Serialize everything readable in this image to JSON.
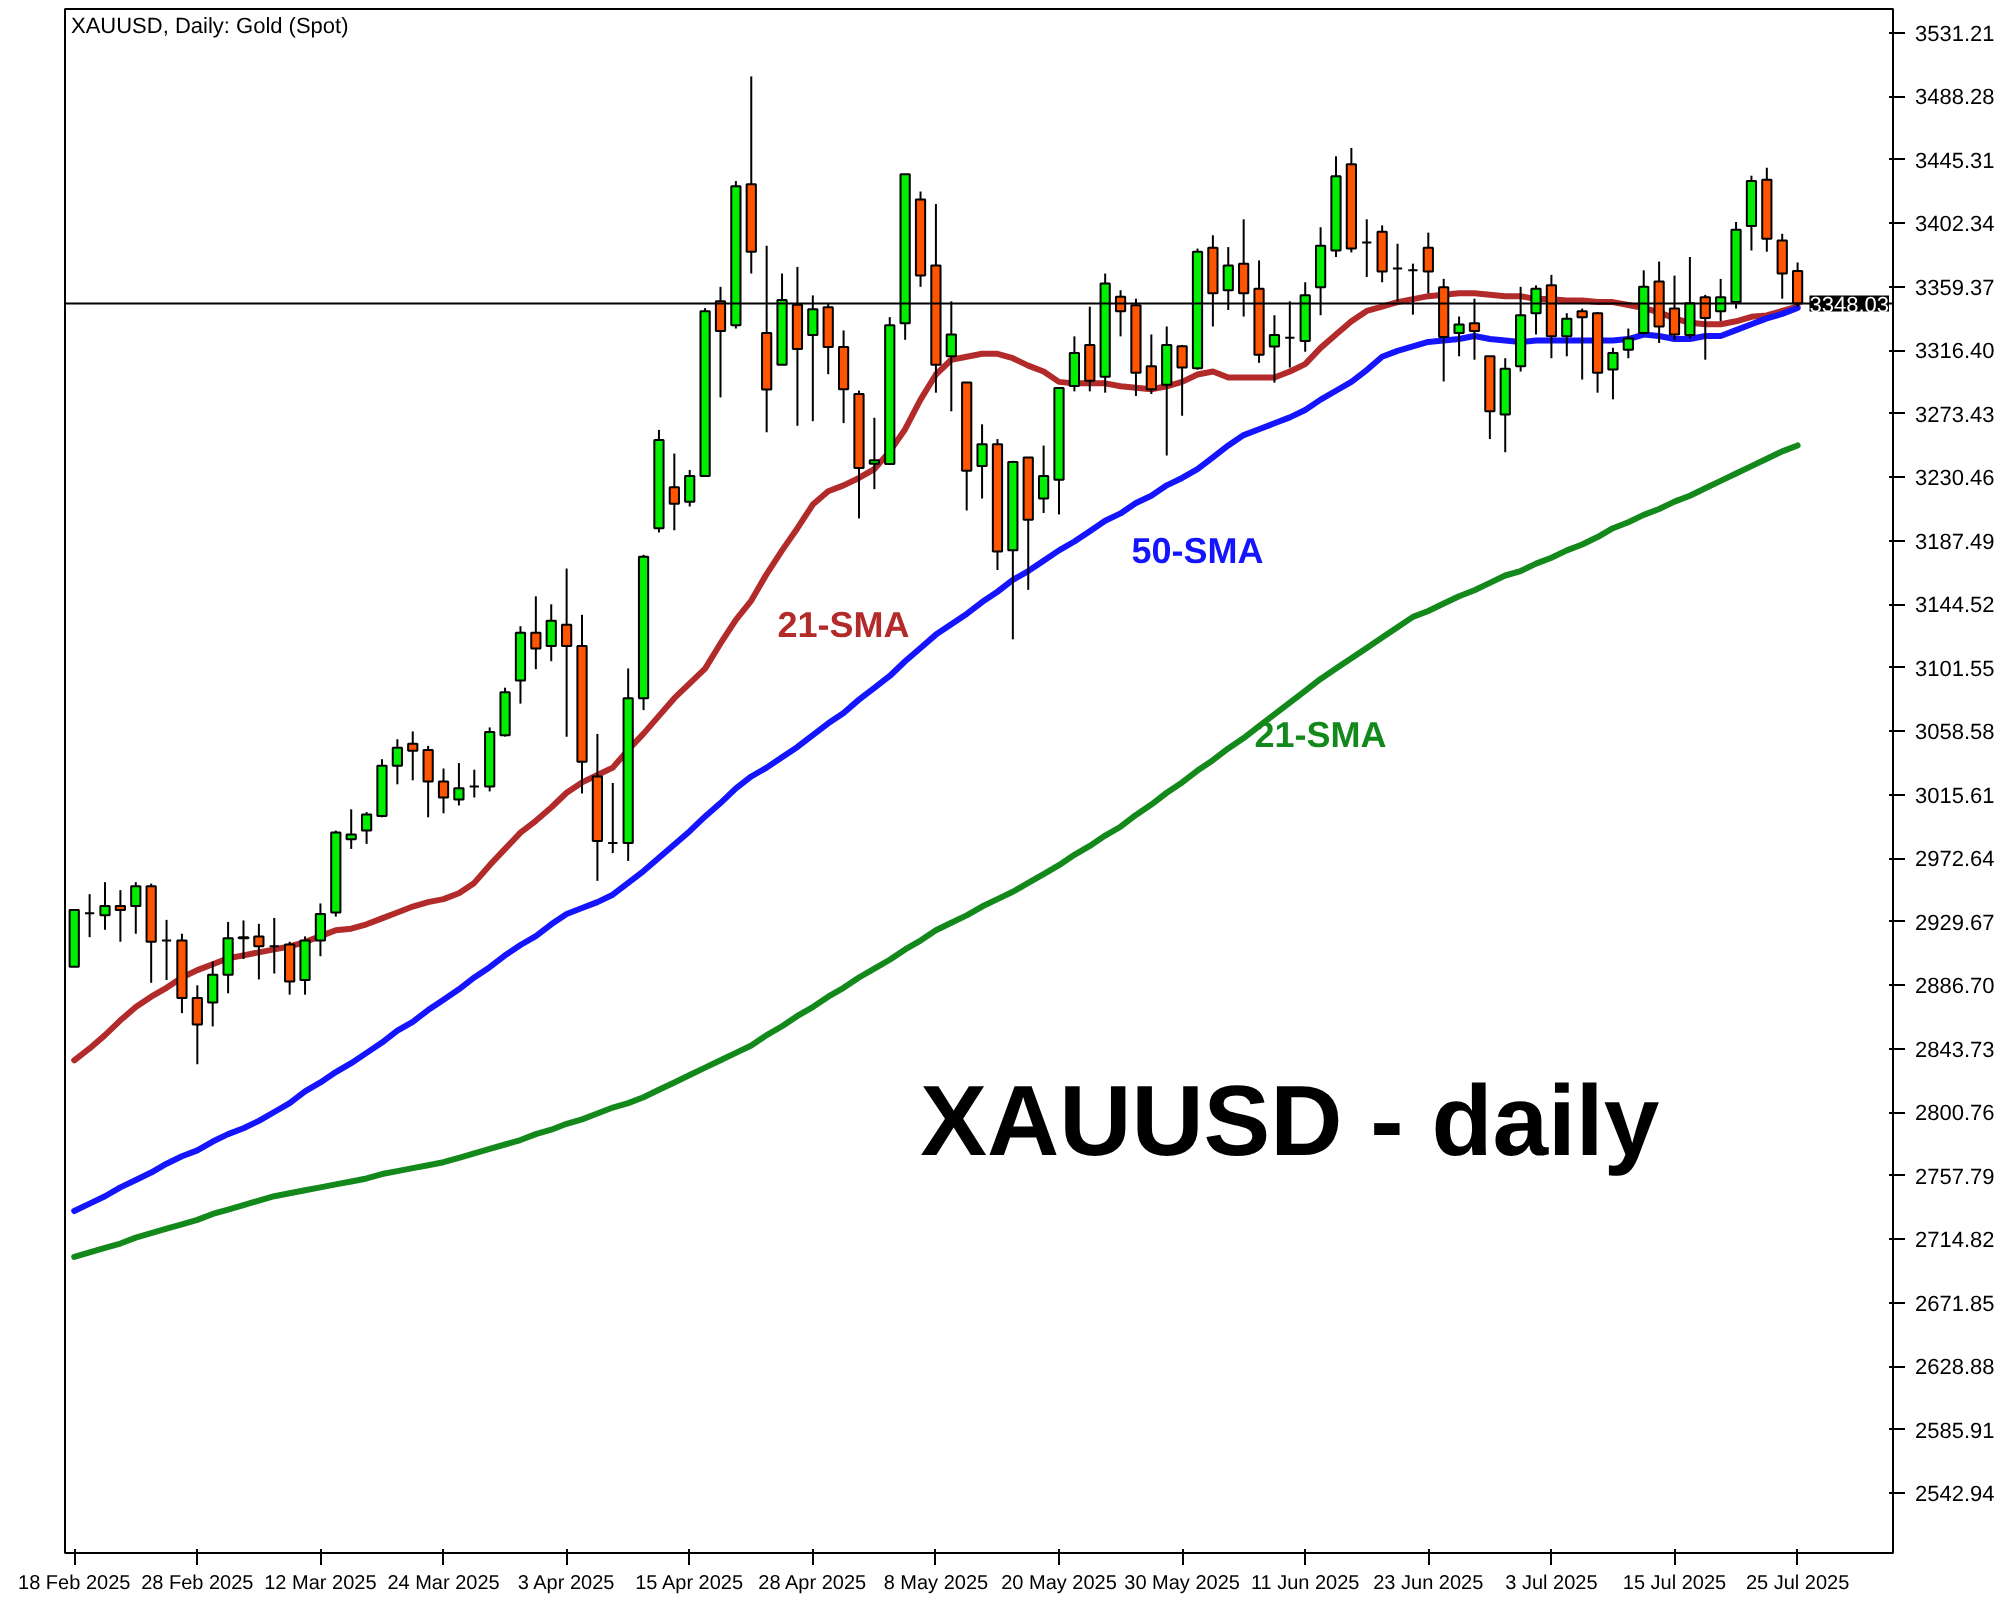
{
  "chart_data": {
    "type": "candlestick",
    "title": "XAUUSD, Daily:  Gold (Spot)",
    "annotations": [
      "XAUUSD - daily"
    ],
    "categories": [
      "18 Feb 2025",
      null,
      null,
      null,
      null,
      null,
      null,
      null,
      "28 Feb 2025",
      null,
      null,
      null,
      null,
      null,
      null,
      null,
      "12 Mar 2025",
      null,
      null,
      null,
      null,
      null,
      null,
      null,
      "24 Mar 2025",
      null,
      null,
      null,
      null,
      null,
      null,
      null,
      "3 Apr 2025",
      null,
      null,
      null,
      null,
      null,
      null,
      null,
      "15 Apr 2025",
      null,
      null,
      null,
      null,
      null,
      null,
      null,
      "28 Apr 2025",
      null,
      null,
      null,
      null,
      null,
      null,
      null,
      "8 May 2025",
      null,
      null,
      null,
      null,
      null,
      null,
      null,
      "20 May 2025",
      null,
      null,
      null,
      null,
      null,
      null,
      null,
      "30 May 2025",
      null,
      null,
      null,
      null,
      null,
      null,
      null,
      "11 Jun 2025",
      null,
      null,
      null,
      null,
      null,
      null,
      null,
      "23 Jun 2025",
      null,
      null,
      null,
      null,
      null,
      null,
      null,
      "3 Jul 2025",
      null,
      null,
      null,
      null,
      null,
      null,
      null,
      "15 Jul 2025",
      null,
      null,
      null,
      null,
      null,
      null,
      null,
      "25 Jul 2025"
    ],
    "ohlc": [
      [
        2899.2,
        2937.7,
        2899.2,
        2937.7
      ],
      [
        2935.4,
        2948.4,
        2919.3,
        2935.4
      ],
      [
        2934.1,
        2956.5,
        2924.3,
        2940.4
      ],
      [
        2940.4,
        2951.1,
        2916.2,
        2937.7
      ],
      [
        2940.4,
        2956.5,
        2921.6,
        2953.8
      ],
      [
        2953.8,
        2955.5,
        2888.4,
        2916.2
      ],
      [
        2917.1,
        2931.0,
        2890.3,
        2917.1
      ],
      [
        2917.1,
        2921.6,
        2867.9,
        2878.2
      ],
      [
        2878.2,
        2886.7,
        2833.3,
        2860.2
      ],
      [
        2875.0,
        2902.8,
        2858.9,
        2893.8
      ],
      [
        2893.8,
        2929.6,
        2881.3,
        2918.5
      ],
      [
        2918.5,
        2930.6,
        2904.5,
        2919.3
      ],
      [
        2919.8,
        2928.3,
        2890.7,
        2913.1
      ],
      [
        2913.1,
        2932.3,
        2894.7,
        2913.1
      ],
      [
        2914.4,
        2916.2,
        2880.4,
        2889.3
      ],
      [
        2890.3,
        2919.8,
        2880.4,
        2917.1
      ],
      [
        2917.1,
        2942.1,
        2906.4,
        2935.0
      ],
      [
        2935.9,
        2991.4,
        2933.2,
        2990.1
      ],
      [
        2985.6,
        3005.8,
        2979.0,
        2988.7
      ],
      [
        2991.4,
        3003.9,
        2982.4,
        3002.2
      ],
      [
        3001.2,
        3039.7,
        3000.4,
        3035.3
      ],
      [
        3035.3,
        3053.2,
        3022.7,
        3047.4
      ],
      [
        3050.1,
        3058.5,
        3025.4,
        3045.5
      ],
      [
        3046.0,
        3048.7,
        3000.4,
        3024.6
      ],
      [
        3024.6,
        3033.4,
        3003.1,
        3013.8
      ],
      [
        3012.5,
        3037.1,
        3008.4,
        3020.0
      ],
      [
        3021.3,
        3032.6,
        3013.8,
        3021.3
      ],
      [
        3021.3,
        3061.2,
        3017.9,
        3058.1
      ],
      [
        3055.9,
        3088.1,
        3055.0,
        3085.0
      ],
      [
        3093.0,
        3129.7,
        3077.3,
        3125.3
      ],
      [
        3125.3,
        3149.9,
        3100.6,
        3114.6
      ],
      [
        3116.3,
        3144.5,
        3106.0,
        3133.3
      ],
      [
        3130.6,
        3168.7,
        3054.9,
        3116.3
      ],
      [
        3116.3,
        3137.4,
        3016.5,
        3038.0
      ],
      [
        3028.0,
        3056.8,
        2957.4,
        2984.3
      ],
      [
        2983.0,
        3023.6,
        2976.2,
        2983.0
      ],
      [
        2983.0,
        3101.1,
        2970.9,
        3081.0
      ],
      [
        3081.0,
        3178.0,
        3072.9,
        3176.7
      ],
      [
        3196.0,
        3262.5,
        3193.1,
        3255.6
      ],
      [
        3223.7,
        3246.5,
        3194.6,
        3212.6
      ],
      [
        3213.9,
        3235.4,
        3210.7,
        3231.4
      ],
      [
        3231.4,
        3344.9,
        3231.4,
        3342.8
      ],
      [
        3349.5,
        3359.3,
        3284.5,
        3329.4
      ],
      [
        3333.4,
        3430.9,
        3331.1,
        3427.4
      ],
      [
        3428.7,
        3501.7,
        3368.3,
        3383.1
      ],
      [
        3328.0,
        3387.1,
        3260.9,
        3289.9
      ],
      [
        3306.6,
        3368.3,
        3306.6,
        3350.4
      ],
      [
        3347.2,
        3372.8,
        3265.3,
        3317.3
      ],
      [
        3326.7,
        3353.5,
        3268.4,
        3344.1
      ],
      [
        3345.5,
        3348.2,
        3300.2,
        3318.6
      ],
      [
        3318.6,
        3329.8,
        3267.1,
        3290.0
      ],
      [
        3286.8,
        3289.1,
        3202.6,
        3236.7
      ],
      [
        3239.6,
        3270.7,
        3222.4,
        3242.0
      ],
      [
        3239.4,
        3338.8,
        3239.4,
        3333.4
      ],
      [
        3334.7,
        3435.5,
        3323.5,
        3435.5
      ],
      [
        3418.4,
        3423.8,
        3359.3,
        3367.0
      ],
      [
        3373.7,
        3415.3,
        3287.7,
        3306.6
      ],
      [
        3312.3,
        3349.5,
        3275.1,
        3327.1
      ],
      [
        3294.5,
        3294.5,
        3208.0,
        3234.9
      ],
      [
        3238.1,
        3266.3,
        3216.1,
        3252.8
      ],
      [
        3252.8,
        3256.3,
        3167.7,
        3180.3
      ],
      [
        3181.1,
        3241.6,
        3120.8,
        3240.8
      ],
      [
        3243.9,
        3243.9,
        3154.3,
        3201.8
      ],
      [
        3216.1,
        3251.9,
        3206.3,
        3231.4
      ],
      [
        3228.7,
        3290.9,
        3205.3,
        3290.9
      ],
      [
        3292.2,
        3325.8,
        3288.6,
        3314.6
      ],
      [
        3320.0,
        3345.9,
        3288.6,
        3295.8
      ],
      [
        3298.5,
        3368.3,
        3287.7,
        3361.6
      ],
      [
        3352.6,
        3357.0,
        3325.8,
        3342.8
      ],
      [
        3346.8,
        3351.3,
        3285.5,
        3301.2
      ],
      [
        3305.6,
        3327.1,
        3286.8,
        3290.0
      ],
      [
        3293.1,
        3332.5,
        3245.2,
        3320.0
      ],
      [
        3319.1,
        3320.0,
        3272.1,
        3304.7
      ],
      [
        3304.3,
        3385.2,
        3303.3,
        3383.1
      ],
      [
        3385.8,
        3394.2,
        3332.5,
        3354.9
      ],
      [
        3357.0,
        3386.2,
        3343.6,
        3373.7
      ],
      [
        3375.0,
        3405.0,
        3339.2,
        3354.9
      ],
      [
        3358.0,
        3377.2,
        3307.9,
        3313.3
      ],
      [
        3319.0,
        3340.1,
        3294.5,
        3326.7
      ],
      [
        3324.8,
        3349.5,
        3304.7,
        3324.8
      ],
      [
        3322.7,
        3362.4,
        3315.4,
        3353.6
      ],
      [
        3359.0,
        3399.6,
        3340.1,
        3387.1
      ],
      [
        3383.9,
        3447.6,
        3379.5,
        3434.1
      ],
      [
        3442.2,
        3453.3,
        3382.6,
        3385.2
      ],
      [
        3389.3,
        3405.0,
        3366.0,
        3389.3
      ],
      [
        3396.5,
        3400.9,
        3362.4,
        3369.7
      ],
      [
        3371.8,
        3388.5,
        3349.5,
        3371.8
      ],
      [
        3370.5,
        3375.0,
        3340.5,
        3370.5
      ],
      [
        3385.8,
        3396.0,
        3354.9,
        3369.7
      ],
      [
        3359.0,
        3364.7,
        3295.3,
        3325.4
      ],
      [
        3328.0,
        3339.2,
        3312.3,
        3333.8
      ],
      [
        3334.7,
        3351.3,
        3310.0,
        3329.4
      ],
      [
        3312.3,
        3312.3,
        3256.3,
        3275.1
      ],
      [
        3273.0,
        3311.0,
        3247.4,
        3303.9
      ],
      [
        3305.6,
        3359.3,
        3302.0,
        3340.1
      ],
      [
        3341.5,
        3360.3,
        3327.1,
        3358.0
      ],
      [
        3360.3,
        3367.4,
        3311.0,
        3325.8
      ],
      [
        3325.8,
        3341.5,
        3312.3,
        3337.8
      ],
      [
        3342.8,
        3344.6,
        3296.6,
        3338.8
      ],
      [
        3341.5,
        3342.3,
        3287.7,
        3301.2
      ],
      [
        3303.3,
        3318.1,
        3283.2,
        3314.6
      ],
      [
        3316.8,
        3331.1,
        3311.0,
        3324.4
      ],
      [
        3328.0,
        3370.5,
        3327.1,
        3359.3
      ],
      [
        3363.0,
        3376.4,
        3321.3,
        3332.5
      ],
      [
        3344.6,
        3366.9,
        3323.5,
        3327.1
      ],
      [
        3326.7,
        3379.5,
        3324.4,
        3348.2
      ],
      [
        3352.2,
        3353.9,
        3310.0,
        3338.2
      ],
      [
        3342.8,
        3364.7,
        3336.1,
        3352.2
      ],
      [
        3349.0,
        3403.2,
        3344.6,
        3397.9
      ],
      [
        3400.5,
        3434.5,
        3383.9,
        3430.9
      ],
      [
        3431.8,
        3439.9,
        3383.1,
        3391.9
      ],
      [
        3390.6,
        3395.2,
        3351.3,
        3368.3
      ],
      [
        3370.1,
        3375.8,
        3345.9,
        3348.0
      ]
    ],
    "colors": [
      "#00ee00",
      "#000000",
      "#00ee00",
      "#ff5500",
      "#00ee00",
      "#ff5500",
      "#000000",
      "#ff5500",
      "#ff5500",
      "#00ee00",
      "#00ee00",
      "#00ee00",
      "#ff5500",
      "#000000",
      "#ff5500",
      "#00ee00",
      "#00ee00",
      "#00ee00",
      "#00ee00",
      "#00ee00",
      "#00ee00",
      "#00ee00",
      "#ff5500",
      "#ff5500",
      "#ff5500",
      "#00ee00",
      "#000000",
      "#00ee00",
      "#00ee00",
      "#00ee00",
      "#ff5500",
      "#00ee00",
      "#ff5500",
      "#ff5500",
      "#ff5500",
      "#000000",
      "#00ee00",
      "#00ee00",
      "#00ee00",
      "#ff5500",
      "#00ee00",
      "#00ee00",
      "#ff5500",
      "#00ee00",
      "#ff5500",
      "#ff5500",
      "#00ee00",
      "#ff5500",
      "#00ee00",
      "#ff5500",
      "#ff5500",
      "#ff5500",
      "#00ee00",
      "#00ee00",
      "#00ee00",
      "#ff5500",
      "#ff5500",
      "#00ee00",
      "#ff5500",
      "#00ee00",
      "#ff5500",
      "#00ee00",
      "#ff5500",
      "#00ee00",
      "#00ee00",
      "#00ee00",
      "#ff5500",
      "#00ee00",
      "#ff5500",
      "#ff5500",
      "#ff5500",
      "#00ee00",
      "#ff5500",
      "#00ee00",
      "#ff5500",
      "#00ee00",
      "#ff5500",
      "#ff5500",
      "#00ee00",
      "#000000",
      "#00ee00",
      "#00ee00",
      "#00ee00",
      "#ff5500",
      "#000000",
      "#ff5500",
      "#000000",
      "#000000",
      "#ff5500",
      "#ff5500",
      "#00ee00",
      "#ff5500",
      "#ff5500",
      "#00ee00",
      "#00ee00",
      "#00ee00",
      "#ff5500",
      "#00ee00",
      "#ff5500",
      "#ff5500",
      "#00ee00",
      "#00ee00",
      "#00ee00",
      "#ff5500",
      "#ff5500",
      "#00ee00",
      "#ff5500",
      "#00ee00",
      "#00ee00",
      "#00ee00",
      "#ff5500",
      "#ff5500",
      "#ff5500"
    ],
    "series": [
      {
        "type": "line",
        "name": "21-SMA",
        "color": "#b22a2a",
        "values": [
          2836,
          2844,
          2853,
          2863,
          2872,
          2879,
          2885,
          2892,
          2897,
          2901,
          2905,
          2907,
          2909,
          2911,
          2913,
          2916,
          2920,
          2924,
          2925,
          2928,
          2932,
          2936,
          2940,
          2943,
          2945,
          2949,
          2956,
          2968,
          2979,
          2990,
          2998,
          3007,
          3017,
          3024,
          3029,
          3034,
          3046,
          3057,
          3069,
          3081,
          3091,
          3101,
          3118,
          3134,
          3147,
          3165,
          3181,
          3196,
          3212,
          3221,
          3225,
          3230,
          3236,
          3248,
          3263,
          3283,
          3300,
          3310,
          3312,
          3314,
          3314,
          3311,
          3306,
          3302,
          3295,
          3294,
          3294,
          3294,
          3292,
          3291,
          3290,
          3292,
          3295,
          3300,
          3302,
          3298,
          3298,
          3298,
          3298,
          3302,
          3307,
          3318,
          3327,
          3336,
          3343,
          3346,
          3349,
          3351,
          3353,
          3354,
          3355,
          3355,
          3354,
          3353,
          3353,
          3351,
          3351,
          3350,
          3350,
          3349,
          3349,
          3347,
          3345,
          3342,
          3338,
          3335,
          3334,
          3334,
          3336,
          3339,
          3340,
          3343,
          3346
        ]
      },
      {
        "type": "line",
        "name": "50-SMA",
        "color": "#1414ff",
        "values": [
          2734,
          2739,
          2744,
          2750,
          2755,
          2760,
          2766,
          2771,
          2775,
          2781,
          2786,
          2790,
          2795,
          2801,
          2807,
          2815,
          2821,
          2828,
          2834,
          2841,
          2848,
          2856,
          2862,
          2870,
          2877,
          2884,
          2892,
          2899,
          2907,
          2914,
          2920,
          2928,
          2935,
          2939,
          2943,
          2948,
          2956,
          2964,
          2973,
          2982,
          2991,
          3001,
          3010,
          3020,
          3028,
          3034,
          3041,
          3048,
          3056,
          3064,
          3071,
          3080,
          3088,
          3096,
          3106,
          3115,
          3124,
          3131,
          3138,
          3146,
          3153,
          3161,
          3167,
          3174,
          3181,
          3187,
          3194,
          3201,
          3206,
          3213,
          3218,
          3225,
          3230,
          3236,
          3244,
          3252,
          3259,
          3263,
          3267,
          3271,
          3276,
          3283,
          3289,
          3295,
          3303,
          3312,
          3316,
          3319,
          3322,
          3323,
          3324,
          3326,
          3324,
          3323,
          3322,
          3323,
          3323,
          3323,
          3323,
          3323,
          3323,
          3324,
          3327,
          3326,
          3324,
          3324,
          3326,
          3326,
          3330,
          3334,
          3338,
          3341,
          3345
        ]
      },
      {
        "type": "line",
        "name": "21-SMA",
        "color": "#12891a",
        "values": [
          2703,
          2706,
          2709,
          2712,
          2716,
          2719,
          2722,
          2725,
          2728,
          2732,
          2735,
          2738,
          2741,
          2744,
          2746,
          2748,
          2750,
          2752,
          2754,
          2756,
          2759,
          2761,
          2763,
          2765,
          2767,
          2770,
          2773,
          2776,
          2779,
          2782,
          2786,
          2789,
          2793,
          2796,
          2800,
          2804,
          2807,
          2811,
          2816,
          2821,
          2826,
          2831,
          2836,
          2841,
          2846,
          2853,
          2859,
          2866,
          2872,
          2879,
          2885,
          2892,
          2898,
          2904,
          2911,
          2917,
          2924,
          2929,
          2934,
          2940,
          2945,
          2950,
          2956,
          2962,
          2968,
          2975,
          2981,
          2988,
          2994,
          3002,
          3009,
          3017,
          3024,
          3032,
          3039,
          3047,
          3054,
          3062,
          3070,
          3078,
          3086,
          3094,
          3101,
          3108,
          3115,
          3122,
          3129,
          3136,
          3140,
          3145,
          3150,
          3154,
          3159,
          3164,
          3167,
          3172,
          3176,
          3181,
          3185,
          3190,
          3196,
          3200,
          3205,
          3209,
          3214,
          3218,
          3223,
          3228,
          3233,
          3238,
          3243,
          3248,
          3252
        ]
      }
    ],
    "ylim": [
      2502.6,
      3547.3
    ],
    "yticks": [
      {
        "value": 2542.94,
        "label": "2542.94"
      },
      {
        "value": 2585.91,
        "label": "2585.91"
      },
      {
        "value": 2628.88,
        "label": "2628.88"
      },
      {
        "value": 2671.85,
        "label": "2671.85"
      },
      {
        "value": 2714.82,
        "label": "2714.82"
      },
      {
        "value": 2757.79,
        "label": "2757.79"
      },
      {
        "value": 2800.76,
        "label": "2800.76"
      },
      {
        "value": 2843.73,
        "label": "2843.73"
      },
      {
        "value": 2886.7,
        "label": "2886.70"
      },
      {
        "value": 2929.67,
        "label": "2929.67"
      },
      {
        "value": 2972.64,
        "label": "2972.64"
      },
      {
        "value": 3015.61,
        "label": "3015.61"
      },
      {
        "value": 3058.58,
        "label": "3058.58"
      },
      {
        "value": 3101.55,
        "label": "3101.55"
      },
      {
        "value": 3144.52,
        "label": "3144.52"
      },
      {
        "value": 3187.49,
        "label": "3187.49"
      },
      {
        "value": 3230.46,
        "label": "3230.46"
      },
      {
        "value": 3273.43,
        "label": "3273.43"
      },
      {
        "value": 3316.4,
        "label": "3316.40"
      },
      {
        "value": 3359.37,
        "label": "3359.37"
      },
      {
        "value": 3402.34,
        "label": "3402.34"
      },
      {
        "value": 3445.31,
        "label": "3445.31"
      },
      {
        "value": 3488.28,
        "label": "3488.28"
      },
      {
        "value": 3531.21,
        "label": "3531.21"
      }
    ],
    "ref_lines": [
      {
        "axis": "y",
        "value": 3348.03,
        "label": "3348.03",
        "color": "#000000"
      }
    ]
  }
}
